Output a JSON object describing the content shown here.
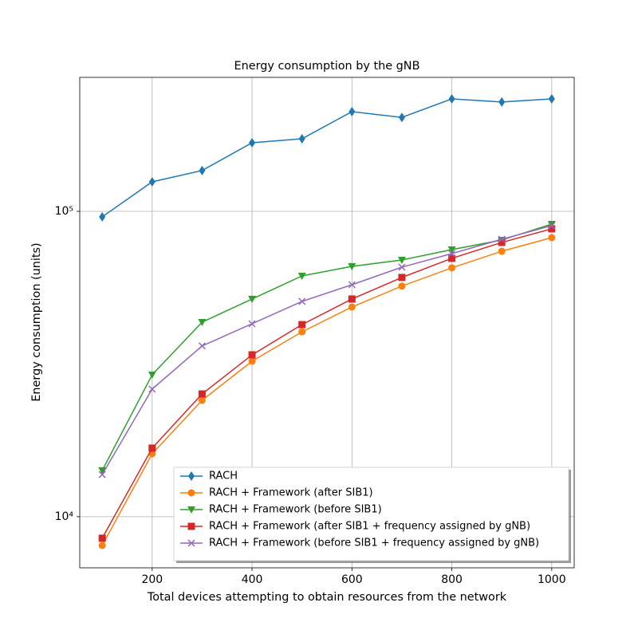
{
  "chart_data": {
    "type": "line",
    "title": "Energy consumption by the gNB",
    "xlabel": "Total devices attempting to obtain resources from the network",
    "ylabel": "Energy consumption (units)",
    "x": [
      100,
      200,
      300,
      400,
      500,
      600,
      700,
      800,
      900,
      1000
    ],
    "xlim": [
      55,
      1045
    ],
    "xticks": [
      200,
      400,
      600,
      800,
      1000
    ],
    "ylim": [
      6800,
      274600
    ],
    "yticks": [
      {
        "value": 10000,
        "label": "10⁴"
      },
      {
        "value": 100000,
        "label": "10⁵"
      }
    ],
    "ylog": true,
    "grid": true,
    "legend": "lower right",
    "series": [
      {
        "name": "RACH",
        "color": "#1f77b4",
        "marker": "diamond",
        "values": [
          95900,
          124900,
          136000,
          167700,
          172800,
          212000,
          203000,
          233500,
          228000,
          233500
        ]
      },
      {
        "name": "RACH + Framework (after SIB1)",
        "color": "#ff7f0e",
        "marker": "circle",
        "values": [
          8050,
          16070,
          24050,
          32300,
          40300,
          48600,
          56900,
          65300,
          74000,
          82000
        ]
      },
      {
        "name": "RACH + Framework (before SIB1)",
        "color": "#2ca02c",
        "marker": "triangle-down",
        "values": [
          14170,
          29160,
          43350,
          51620,
          61440,
          66040,
          69280,
          74930,
          80540,
          90800
        ]
      },
      {
        "name": "RACH + Framework (after SIB1 + frequency assigned by gNB)",
        "color": "#d62728",
        "marker": "square",
        "values": [
          8500,
          16770,
          25230,
          33880,
          42560,
          51620,
          60730,
          70150,
          79100,
          87630
        ]
      },
      {
        "name": "RACH + Framework (before SIB1 + frequency assigned by gNB)",
        "color": "#9467bd",
        "marker": "x",
        "values": [
          13740,
          26170,
          36240,
          42830,
          50690,
          57500,
          65630,
          72700,
          81000,
          89750
        ]
      }
    ]
  }
}
